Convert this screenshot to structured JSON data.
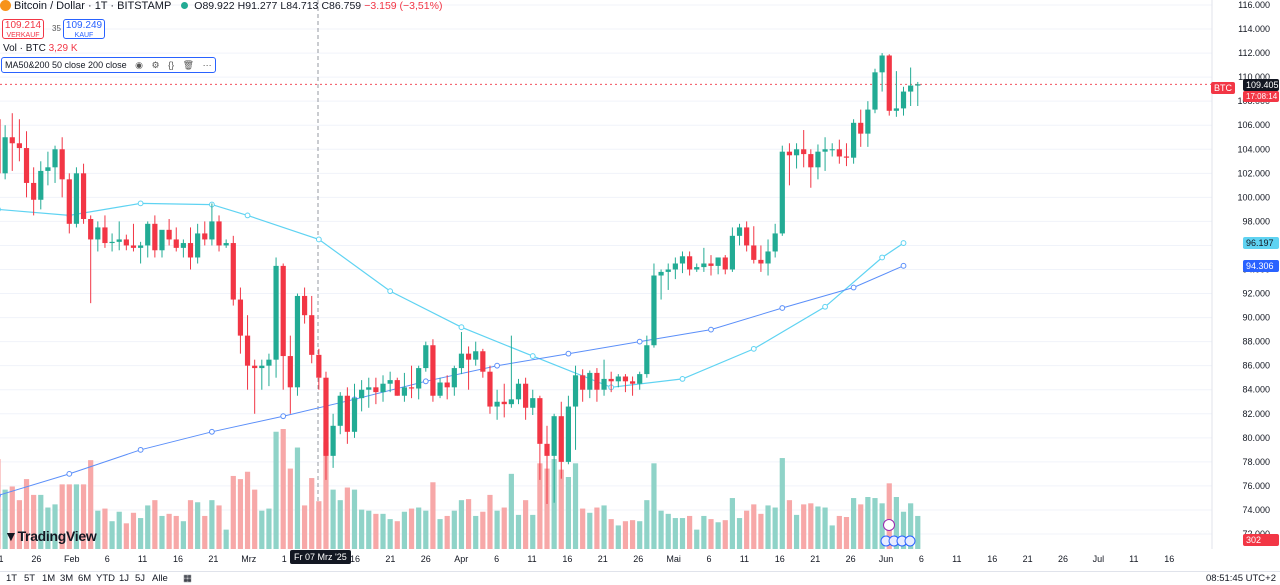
{
  "header": {
    "symbol": "Bitcoin / Dollar · 1T · BITSTAMP",
    "open": "O89.922",
    "high": "H91.277",
    "low": "L84.713",
    "close": "C86.759",
    "change": "−3.159 (−3,51%)"
  },
  "trade": {
    "sell_price": "109.214",
    "sell_label": "VERKAUF",
    "spread": "35",
    "buy_price": "109.249",
    "buy_label": "KAUF"
  },
  "volume_legend": {
    "label": "Vol · BTC",
    "value": "3,29 K"
  },
  "ma_legend": {
    "label": "MA50&200 50 close 200 close"
  },
  "price_tags": {
    "symbol_tag": "BTC",
    "last_price": "109.405",
    "countdown": "17:08:14",
    "ma50_value": "96.197",
    "ma200_value": "94.306",
    "volume_value": "302"
  },
  "crosshair_date": "Fr 07 Mrz '25",
  "logo": "TradingView",
  "timeframes": [
    "1T",
    "5T",
    "1M",
    "3M",
    "6M",
    "YTD",
    "1J",
    "5J",
    "Alle"
  ],
  "clock": "08:51:45 UTC+2",
  "colors": {
    "up": "#22ab94",
    "down": "#f23645",
    "ma50": "#5fd3f2",
    "ma200": "#5b8ff9",
    "vol_up": "#8fd3c8",
    "vol_down": "#f7a8a8"
  },
  "chart_data": {
    "type": "candlestick",
    "y_range": [
      72000,
      116000
    ],
    "y_ticks": [
      "116.000",
      "114.000",
      "112.000",
      "110.000",
      "108.000",
      "106.000",
      "104.000",
      "102.000",
      "100.000",
      "98.000",
      "96.000",
      "94.000",
      "92.000",
      "90.000",
      "88.000",
      "86.000",
      "84.000",
      "82.000",
      "80.000",
      "78.000",
      "76.000",
      "74.000",
      "72.000"
    ],
    "x_labels": [
      "1",
      "26",
      "Feb",
      "6",
      "11",
      "16",
      "21",
      "Mrz",
      "1",
      "11",
      "16",
      "21",
      "26",
      "Apr",
      "6",
      "11",
      "16",
      "21",
      "26",
      "Mai",
      "6",
      "11",
      "16",
      "21",
      "26",
      "Jun",
      "6",
      "11",
      "16",
      "21",
      "26",
      "Jul",
      "11",
      "16"
    ],
    "candles": [
      [
        106500,
        108200,
        100800,
        102000
      ],
      [
        102000,
        106000,
        101500,
        105000
      ],
      [
        105000,
        107000,
        102200,
        104500
      ],
      [
        104500,
        106500,
        103000,
        104100
      ],
      [
        104100,
        105500,
        100000,
        101200
      ],
      [
        101200,
        102500,
        98500,
        99800
      ],
      [
        99800,
        103000,
        99000,
        102200
      ],
      [
        102200,
        103800,
        101000,
        102500
      ],
      [
        102500,
        104300,
        101200,
        104000
      ],
      [
        104000,
        105000,
        100000,
        101500
      ],
      [
        101500,
        102000,
        97000,
        97800
      ],
      [
        97800,
        102500,
        97500,
        102000
      ],
      [
        102000,
        102800,
        97800,
        98200
      ],
      [
        98200,
        98500,
        91200,
        96500
      ],
      [
        96500,
        98000,
        95500,
        97500
      ],
      [
        97500,
        98500,
        95800,
        96200
      ],
      [
        96200,
        97000,
        95500,
        96300
      ],
      [
        96300,
        98000,
        95600,
        96500
      ],
      [
        96500,
        96900,
        95600,
        96000
      ],
      [
        96000,
        97800,
        95500,
        95800
      ],
      [
        95800,
        96300,
        94500,
        96000
      ],
      [
        96000,
        98000,
        95000,
        97800
      ],
      [
        97800,
        98500,
        95000,
        95600
      ],
      [
        95600,
        97000,
        95000,
        97300
      ],
      [
        97300,
        98200,
        96000,
        96500
      ],
      [
        96500,
        97500,
        95500,
        95800
      ],
      [
        95800,
        96500,
        95000,
        96200
      ],
      [
        96200,
        97500,
        94000,
        95000
      ],
      [
        95000,
        97800,
        94500,
        97000
      ],
      [
        97000,
        98000,
        96000,
        96500
      ],
      [
        96500,
        99500,
        96000,
        98000
      ],
      [
        98000,
        98500,
        95500,
        96000
      ],
      [
        96000,
        96500,
        95800,
        96200
      ],
      [
        96200,
        96800,
        91000,
        91500
      ],
      [
        91500,
        92500,
        87000,
        88500
      ],
      [
        88500,
        90200,
        84000,
        86000
      ],
      [
        86000,
        86500,
        82000,
        85800
      ],
      [
        85800,
        86500,
        84000,
        86000
      ],
      [
        86000,
        87000,
        84300,
        86500
      ],
      [
        86500,
        95000,
        85000,
        94300
      ],
      [
        94300,
        94500,
        84000,
        86800
      ],
      [
        86800,
        88500,
        82000,
        84200
      ],
      [
        84200,
        92000,
        83500,
        91800
      ],
      [
        91800,
        92500,
        89500,
        90200
      ],
      [
        90200,
        91800,
        86200,
        86900
      ],
      [
        86900,
        87400,
        84000,
        85000
      ],
      [
        85000,
        85500,
        76500,
        78500
      ],
      [
        78500,
        82000,
        77500,
        81000
      ],
      [
        81000,
        83800,
        80300,
        83500
      ],
      [
        83500,
        84200,
        79500,
        80500
      ],
      [
        80500,
        84500,
        80000,
        83300
      ],
      [
        83300,
        84800,
        82200,
        84000
      ],
      [
        84000,
        85000,
        82500,
        84200
      ],
      [
        84200,
        85000,
        82800,
        83800
      ],
      [
        83800,
        85200,
        83000,
        84500
      ],
      [
        84500,
        85500,
        83800,
        84800
      ],
      [
        84800,
        85000,
        83500,
        83500
      ],
      [
        83500,
        85400,
        83000,
        84200
      ],
      [
        84200,
        86000,
        83300,
        84100
      ],
      [
        84100,
        86000,
        83200,
        85800
      ],
      [
        85800,
        88000,
        85500,
        87700
      ],
      [
        87700,
        88200,
        83000,
        83500
      ],
      [
        83500,
        85000,
        83300,
        84600
      ],
      [
        84600,
        85200,
        83200,
        84200
      ],
      [
        84200,
        86000,
        83500,
        85800
      ],
      [
        85800,
        88800,
        85300,
        87000
      ],
      [
        87000,
        87600,
        84000,
        86500
      ],
      [
        86500,
        88000,
        86000,
        87200
      ],
      [
        87200,
        87400,
        85000,
        85500
      ],
      [
        85500,
        86000,
        82000,
        82600
      ],
      [
        82600,
        84000,
        81500,
        83000
      ],
      [
        83000,
        84500,
        81700,
        82800
      ],
      [
        82800,
        88500,
        82500,
        83200
      ],
      [
        83200,
        84900,
        82800,
        84500
      ],
      [
        84500,
        85000,
        81500,
        82500
      ],
      [
        82500,
        84000,
        81900,
        83300
      ],
      [
        83300,
        83500,
        76500,
        79500
      ],
      [
        79500,
        81000,
        74500,
        78500
      ],
      [
        78500,
        82000,
        74600,
        81800
      ],
      [
        81800,
        83000,
        76600,
        78000
      ],
      [
        78000,
        83500,
        77800,
        82600
      ],
      [
        82600,
        86000,
        79000,
        85200
      ],
      [
        85200,
        85700,
        83000,
        84000
      ],
      [
        84000,
        85600,
        83300,
        85400
      ],
      [
        85400,
        85800,
        83000,
        84000
      ],
      [
        84000,
        86500,
        83500,
        84900
      ],
      [
        84900,
        85500,
        83800,
        84700
      ],
      [
        84700,
        85300,
        84200,
        85100
      ],
      [
        85100,
        85300,
        83800,
        84700
      ],
      [
        84700,
        85100,
        83500,
        84500
      ],
      [
        84500,
        85500,
        84000,
        85300
      ],
      [
        85300,
        88500,
        85000,
        87700
      ],
      [
        87700,
        94500,
        87500,
        93500
      ],
      [
        93500,
        94000,
        91500,
        93800
      ],
      [
        93800,
        94500,
        92300,
        94000
      ],
      [
        94000,
        95000,
        93200,
        94500
      ],
      [
        94500,
        95500,
        93700,
        95100
      ],
      [
        95100,
        95500,
        93500,
        94000
      ],
      [
        94000,
        94500,
        93800,
        94200
      ],
      [
        94200,
        95800,
        93800,
        94500
      ],
      [
        94500,
        95200,
        93500,
        94300
      ],
      [
        94300,
        95000,
        93600,
        95000
      ],
      [
        95000,
        95200,
        93600,
        94000
      ],
      [
        94000,
        97500,
        93800,
        96800
      ],
      [
        96800,
        97800,
        96000,
        97500
      ],
      [
        97500,
        98000,
        95500,
        96000
      ],
      [
        96000,
        97600,
        94500,
        94800
      ],
      [
        94800,
        96000,
        93800,
        94500
      ],
      [
        94500,
        96500,
        93500,
        95500
      ],
      [
        95500,
        97800,
        95000,
        97000
      ],
      [
        97000,
        104300,
        96800,
        103800
      ],
      [
        103800,
        104500,
        101000,
        103500
      ],
      [
        103500,
        104500,
        102400,
        104000
      ],
      [
        104000,
        105600,
        102500,
        103600
      ],
      [
        103600,
        104000,
        100800,
        102500
      ],
      [
        102500,
        104400,
        101500,
        103800
      ],
      [
        103800,
        105000,
        102200,
        104000
      ],
      [
        104000,
        104500,
        103400,
        104000
      ],
      [
        104000,
        104800,
        102800,
        103400
      ],
      [
        103400,
        104500,
        102600,
        103300
      ],
      [
        103300,
        106500,
        102800,
        106200
      ],
      [
        106200,
        107300,
        104200,
        105300
      ],
      [
        105300,
        108000,
        104200,
        107300
      ],
      [
        107300,
        110700,
        107000,
        110400
      ],
      [
        110400,
        112000,
        108800,
        111800
      ],
      [
        111800,
        111900,
        106800,
        107200
      ],
      [
        107200,
        110500,
        106700,
        107400
      ],
      [
        107400,
        109200,
        106800,
        108800
      ],
      [
        108800,
        110800,
        107600,
        109300
      ],
      [
        109300,
        109600,
        107600,
        109405
      ]
    ],
    "ma50": [
      [
        0,
        99000
      ],
      [
        10,
        98500
      ],
      [
        20,
        99500
      ],
      [
        30,
        99400
      ],
      [
        35,
        98500
      ],
      [
        45,
        96500
      ],
      [
        55,
        92200
      ],
      [
        65,
        89200
      ],
      [
        75,
        86800
      ],
      [
        86,
        84200
      ],
      [
        96,
        84900
      ],
      [
        106,
        87400
      ],
      [
        116,
        90900
      ],
      [
        124,
        95000
      ],
      [
        127,
        96197
      ]
    ],
    "ma200": [
      [
        0,
        75200
      ],
      [
        10,
        77000
      ],
      [
        20,
        79000
      ],
      [
        30,
        80500
      ],
      [
        40,
        81800
      ],
      [
        50,
        83200
      ],
      [
        60,
        84700
      ],
      [
        70,
        86000
      ],
      [
        80,
        87000
      ],
      [
        90,
        88000
      ],
      [
        100,
        89000
      ],
      [
        110,
        90800
      ],
      [
        120,
        92500
      ],
      [
        127,
        94306
      ]
    ]
  }
}
